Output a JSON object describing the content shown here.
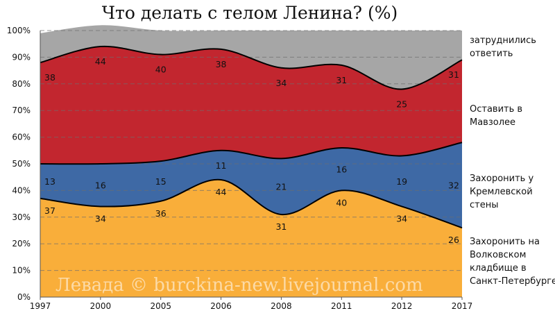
{
  "chart_data": {
    "type": "area",
    "title": "Что делать с телом Ленина? (%)",
    "xlabel": "",
    "ylabel": "",
    "ylim": [
      0,
      100
    ],
    "y_ticks": [
      "0%",
      "10%",
      "20%",
      "30%",
      "40%",
      "50%",
      "60%",
      "70%",
      "80%",
      "90%",
      "100%"
    ],
    "categories": [
      "1997",
      "2000",
      "2005",
      "2006",
      "2008",
      "2011",
      "2012",
      "2017"
    ],
    "stacked": true,
    "grid": "horizontal dashed",
    "legend_position": "right",
    "series": [
      {
        "name": "Захоронить на Волковском кладбище в Санкт-Петербурге",
        "legend_lines": [
          "Захоронить на",
          "Волковском",
          "кладбище в",
          "Санкт-Петербурге"
        ],
        "color": "#f9ae3a",
        "values": [
          37,
          34,
          36,
          44,
          31,
          40,
          34,
          26
        ]
      },
      {
        "name": "Захоронить у Кремлевской стены",
        "legend_lines": [
          "Захоронить у",
          "Кремлевской",
          "стены"
        ],
        "color": "#3e69a5",
        "values": [
          13,
          16,
          15,
          11,
          21,
          16,
          19,
          32
        ]
      },
      {
        "name": "Оставить в Мавзолее",
        "legend_lines": [
          "Оставить в",
          "Мавзолее"
        ],
        "color": "#c2262f",
        "values": [
          38,
          44,
          40,
          38,
          34,
          31,
          25,
          31
        ]
      },
      {
        "name": "затруднились ответить",
        "legend_lines": [
          "затруднились",
          "ответить"
        ],
        "color": "#a6a6a6",
        "values": [
          11,
          8,
          9,
          7,
          14,
          13,
          22,
          11
        ]
      }
    ],
    "watermark": "Левада © burckina-new.livejournal.com"
  }
}
